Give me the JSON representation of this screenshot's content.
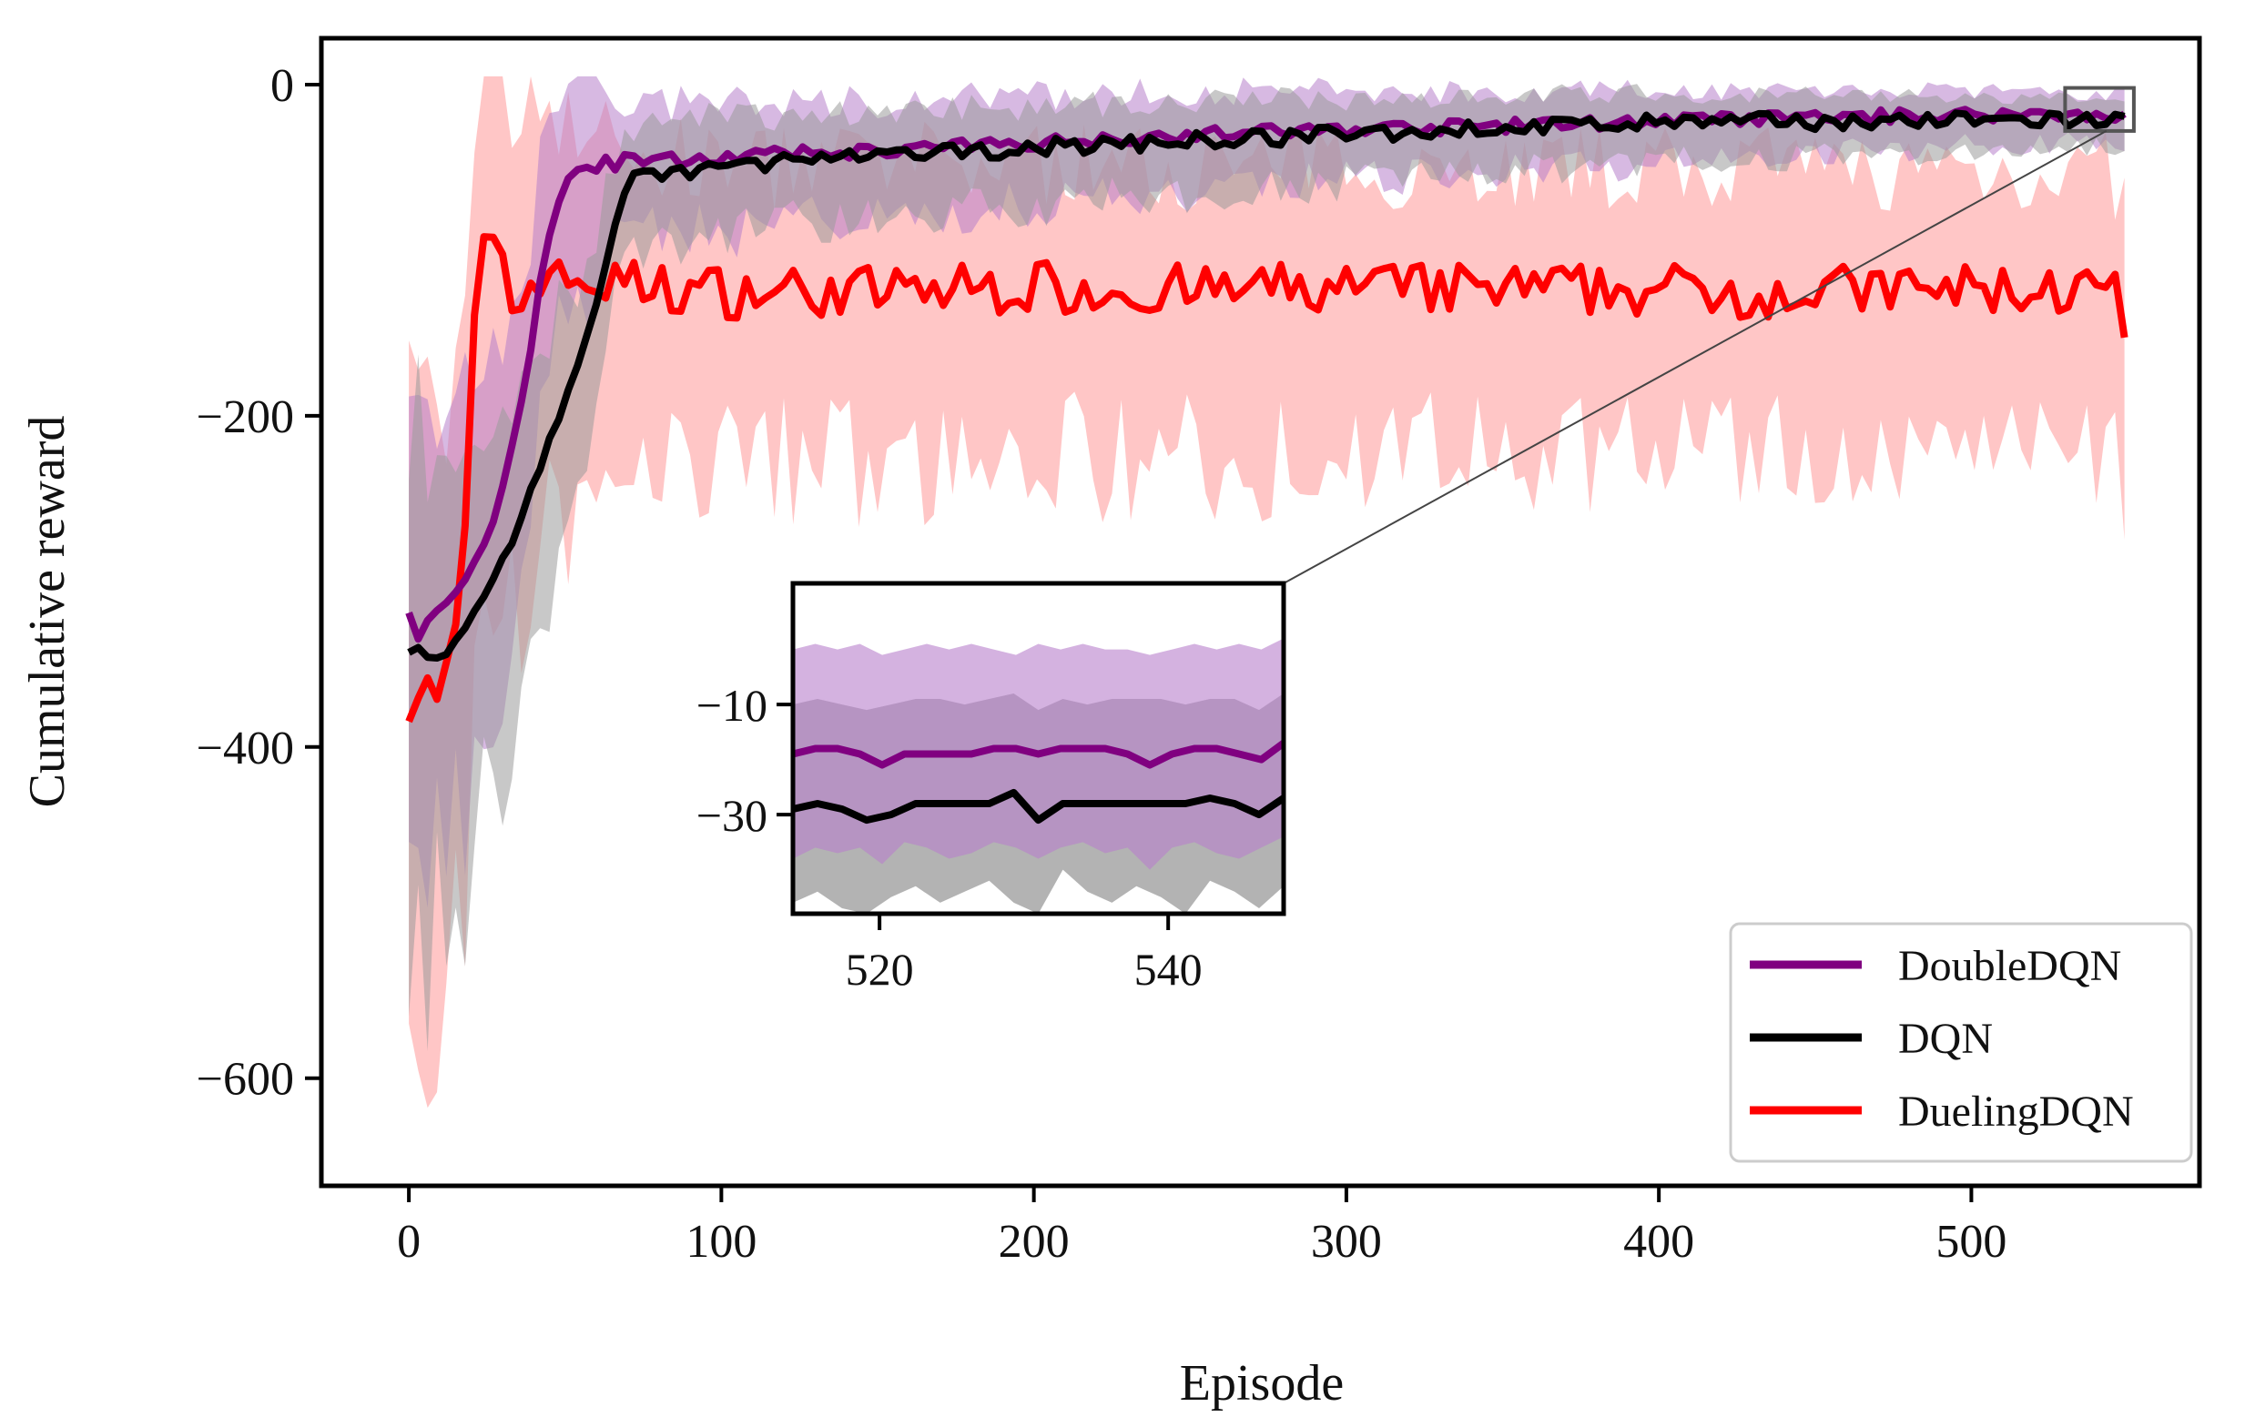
{
  "chart_data": {
    "type": "line",
    "title": "",
    "xlabel": "Episode",
    "ylabel": "Cumulative reward",
    "xlim": [
      -28,
      573
    ],
    "ylim": [
      -665,
      28
    ],
    "xticks": [
      0,
      100,
      200,
      300,
      400,
      500
    ],
    "xtick_labels": [
      "0",
      "100",
      "200",
      "300",
      "400",
      "500"
    ],
    "yticks": [
      0,
      -200,
      -400,
      -600
    ],
    "ytick_labels": [
      "0",
      "−200",
      "−400",
      "−600"
    ],
    "grid": false,
    "legend_position": "lower-right",
    "series": [
      {
        "name": "DoubleDQN",
        "color": "#800080",
        "band_color": "#b77fcb",
        "keypoints": [
          [
            0,
            -320
          ],
          [
            3,
            -335
          ],
          [
            6,
            -325
          ],
          [
            10,
            -318
          ],
          [
            14,
            -310
          ],
          [
            18,
            -300
          ],
          [
            22,
            -285
          ],
          [
            25,
            -275
          ],
          [
            28,
            -255
          ],
          [
            30,
            -245
          ],
          [
            33,
            -220
          ],
          [
            35,
            -200
          ],
          [
            38,
            -170
          ],
          [
            40,
            -150
          ],
          [
            42,
            -120
          ],
          [
            45,
            -90
          ],
          [
            48,
            -70
          ],
          [
            50,
            -58
          ],
          [
            53,
            -52
          ],
          [
            56,
            -50
          ],
          [
            60,
            -52
          ],
          [
            63,
            -45
          ],
          [
            66,
            -48
          ],
          [
            70,
            -44
          ],
          [
            80,
            -46
          ],
          [
            100,
            -44
          ],
          [
            120,
            -42
          ],
          [
            150,
            -40
          ],
          [
            200,
            -35
          ],
          [
            250,
            -30
          ],
          [
            300,
            -27
          ],
          [
            350,
            -25
          ],
          [
            400,
            -22
          ],
          [
            450,
            -20
          ],
          [
            500,
            -18
          ],
          [
            550,
            -18
          ]
        ],
        "band_width": {
          "start": 150,
          "mid": 40,
          "end": 14
        },
        "noise_amplitude": 4
      },
      {
        "name": "DQN",
        "color": "#000000",
        "band_color": "#9a9a9a",
        "keypoints": [
          [
            0,
            -345
          ],
          [
            3,
            -340
          ],
          [
            6,
            -348
          ],
          [
            10,
            -345
          ],
          [
            14,
            -340
          ],
          [
            18,
            -330
          ],
          [
            22,
            -315
          ],
          [
            25,
            -305
          ],
          [
            28,
            -295
          ],
          [
            32,
            -280
          ],
          [
            35,
            -265
          ],
          [
            40,
            -240
          ],
          [
            45,
            -215
          ],
          [
            50,
            -190
          ],
          [
            55,
            -165
          ],
          [
            58,
            -148
          ],
          [
            61,
            -125
          ],
          [
            64,
            -100
          ],
          [
            67,
            -75
          ],
          [
            70,
            -60
          ],
          [
            75,
            -56
          ],
          [
            80,
            -55
          ],
          [
            90,
            -52
          ],
          [
            100,
            -50
          ],
          [
            110,
            -48
          ],
          [
            120,
            -46
          ],
          [
            150,
            -44
          ],
          [
            200,
            -38
          ],
          [
            250,
            -34
          ],
          [
            300,
            -30
          ],
          [
            350,
            -26
          ],
          [
            400,
            -23
          ],
          [
            450,
            -22
          ],
          [
            500,
            -22
          ],
          [
            550,
            -21
          ]
        ],
        "band_width": {
          "start": 160,
          "mid": 36,
          "end": 14
        },
        "noise_amplitude": 5
      },
      {
        "name": "DuelingDQN",
        "color": "#ff0000",
        "band_color": "#ffb3b3",
        "keypoints": [
          [
            0,
            -375
          ],
          [
            3,
            -365
          ],
          [
            6,
            -355
          ],
          [
            9,
            -372
          ],
          [
            12,
            -355
          ],
          [
            15,
            -330
          ],
          [
            18,
            -270
          ],
          [
            20,
            -180
          ],
          [
            22,
            -110
          ],
          [
            25,
            -95
          ],
          [
            28,
            -93
          ],
          [
            30,
            -100
          ],
          [
            32,
            -130
          ],
          [
            35,
            -140
          ],
          [
            38,
            -122
          ],
          [
            42,
            -118
          ],
          [
            46,
            -112
          ],
          [
            50,
            -118
          ],
          [
            60,
            -120
          ],
          [
            100,
            -125
          ],
          [
            150,
            -125
          ],
          [
            200,
            -122
          ],
          [
            250,
            -125
          ],
          [
            300,
            -123
          ],
          [
            350,
            -124
          ],
          [
            400,
            -124
          ],
          [
            450,
            -125
          ],
          [
            500,
            -124
          ],
          [
            545,
            -125
          ],
          [
            550,
            -152
          ]
        ],
        "band_width": {
          "start": 200,
          "mid": 90,
          "end": 85
        },
        "noise_amplitude": 16
      }
    ],
    "inset": {
      "xlim": [
        514,
        548
      ],
      "ylim": [
        -48,
        12
      ],
      "xticks": [
        520,
        540
      ],
      "xtick_labels": [
        "520",
        "540"
      ],
      "yticks": [
        -10,
        -30
      ],
      "ytick_labels": [
        "−10",
        "−30"
      ],
      "highlight_box": {
        "x": [
          530,
          552
        ],
        "y": [
          -28,
          -2
        ]
      },
      "series": [
        {
          "name": "DoubleDQN",
          "values": [
            -19,
            -18,
            -18,
            -19,
            -21,
            -19,
            -19,
            -19,
            -19,
            -18,
            -18,
            -19,
            -18,
            -18,
            -18,
            -19,
            -21,
            -19,
            -18,
            -18,
            -19,
            -20,
            -17
          ],
          "upper": [
            0,
            1,
            0,
            1,
            -1,
            0,
            1,
            0,
            1,
            0,
            -1,
            1,
            0,
            1,
            0,
            0,
            -1,
            0,
            1,
            0,
            1,
            0,
            2
          ],
          "lower": [
            -38,
            -36,
            -37,
            -36,
            -39,
            -35,
            -36,
            -38,
            -37,
            -35,
            -36,
            -38,
            -36,
            -35,
            -37,
            -36,
            -40,
            -36,
            -35,
            -37,
            -38,
            -36,
            -34
          ]
        },
        {
          "name": "DQN",
          "values": [
            -29,
            -28,
            -29,
            -31,
            -30,
            -28,
            -28,
            -28,
            -28,
            -26,
            -31,
            -28,
            -28,
            -28,
            -28,
            -28,
            -28,
            -27,
            -28,
            -30,
            -27
          ],
          "upper": [
            -10,
            -9,
            -10,
            -11,
            -10,
            -9,
            -9,
            -10,
            -9,
            -8,
            -11,
            -9,
            -10,
            -9,
            -9,
            -9,
            -10,
            -9,
            -9,
            -11,
            -8
          ],
          "lower": [
            -46,
            -44,
            -47,
            -48,
            -45,
            -43,
            -46,
            -44,
            -42,
            -46,
            -48,
            -40,
            -44,
            -46,
            -43,
            -45,
            -48,
            -42,
            -44,
            -47,
            -43
          ]
        }
      ]
    }
  }
}
